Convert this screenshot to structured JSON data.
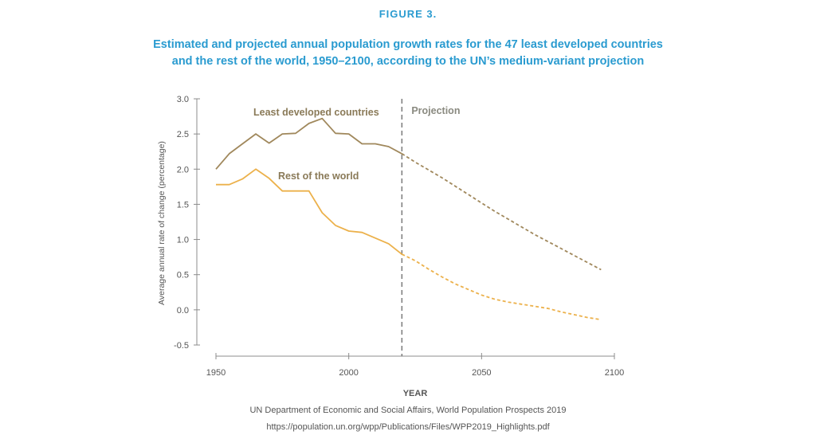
{
  "figure_label": "FIGURE 3.",
  "title_line1": "Estimated and projected annual population growth rates for the 47 least developed countries",
  "title_line2": "and the rest of the world, 1950–2100, according to the UN’s medium-variant projection",
  "source_line1": "UN Department of Economic and Social Affairs, World Population Prospects 2019",
  "source_line2": "https://population.un.org/wpp/Publications/Files/WPP2019_Highlights.pdf",
  "chart_data": {
    "type": "line",
    "title": "Estimated and projected annual population growth rates for the 47 least developed countries and the rest of the world, 1950–2100, according to the UN’s medium-variant projection",
    "xlabel": "YEAR",
    "ylabel": "Average annual rate of change (percentage)",
    "xlim": [
      1950,
      2100
    ],
    "ylim": [
      -0.5,
      3.0
    ],
    "x_ticks": [
      "1950",
      "2000",
      "2050",
      "2100"
    ],
    "y_ticks": [
      "3.0",
      "2.5",
      "2.0",
      "1.5",
      "1.0",
      "0.5",
      "0.0",
      "-0.5"
    ],
    "projection_start": 2020,
    "projection_label": "Projection",
    "grid": false,
    "series": [
      {
        "name": "Least developed countries",
        "color": "#a0885c",
        "x": [
          1950,
          1955,
          1960,
          1965,
          1970,
          1975,
          1980,
          1985,
          1990,
          1995,
          2000,
          2005,
          2010,
          2015,
          2020,
          2025,
          2030,
          2035,
          2040,
          2045,
          2050,
          2055,
          2060,
          2065,
          2070,
          2075,
          2080,
          2085,
          2090,
          2095
        ],
        "values": [
          2.0,
          2.22,
          2.36,
          2.5,
          2.37,
          2.5,
          2.51,
          2.65,
          2.72,
          2.51,
          2.5,
          2.36,
          2.36,
          2.32,
          2.22,
          2.1,
          1.99,
          1.88,
          1.76,
          1.64,
          1.52,
          1.4,
          1.29,
          1.18,
          1.07,
          0.97,
          0.87,
          0.77,
          0.67,
          0.57
        ]
      },
      {
        "name": "Rest of the world",
        "color": "#ecb14b",
        "x": [
          1950,
          1955,
          1960,
          1965,
          1970,
          1975,
          1980,
          1985,
          1990,
          1995,
          2000,
          2005,
          2010,
          2015,
          2020,
          2025,
          2030,
          2035,
          2040,
          2045,
          2050,
          2055,
          2060,
          2065,
          2070,
          2075,
          2080,
          2085,
          2090,
          2095
        ],
        "values": [
          1.78,
          1.78,
          1.86,
          2.0,
          1.87,
          1.69,
          1.69,
          1.69,
          1.38,
          1.2,
          1.12,
          1.1,
          1.02,
          0.94,
          0.79,
          0.7,
          0.58,
          0.47,
          0.37,
          0.29,
          0.21,
          0.15,
          0.11,
          0.08,
          0.05,
          0.02,
          -0.03,
          -0.07,
          -0.11,
          -0.14
        ]
      }
    ]
  }
}
